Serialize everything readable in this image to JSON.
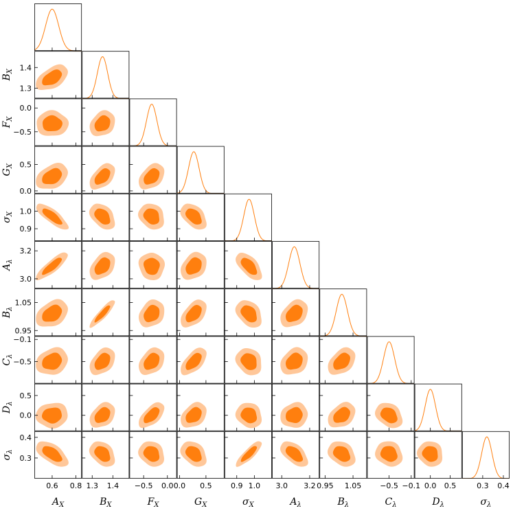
{
  "chart_data": {
    "type": "corner",
    "parameters": [
      {
        "id": "AX",
        "label": "A",
        "sub": "X",
        "range": [
          0.45,
          0.85
        ],
        "ticks": [
          0.6,
          0.8
        ],
        "tick_labels": [
          "0.6",
          "0.8"
        ],
        "mean": 0.6,
        "sd": 0.055
      },
      {
        "id": "BX",
        "label": "B",
        "sub": "X",
        "range": [
          1.25,
          1.48
        ],
        "ticks": [
          1.3,
          1.4
        ],
        "tick_labels": [
          "1.3",
          "1.4"
        ],
        "mean": 1.35,
        "sd": 0.025
      },
      {
        "id": "FX",
        "label": "F",
        "sub": "X",
        "range": [
          -0.8,
          0.2
        ],
        "ticks": [
          -0.5,
          0.0
        ],
        "tick_labels": [
          "-0.5",
          "0.0"
        ],
        "mean": -0.33,
        "sd": 0.11
      },
      {
        "id": "GX",
        "label": "G",
        "sub": "X",
        "range": [
          -0.05,
          0.85
        ],
        "ticks": [
          0.0,
          0.5
        ],
        "tick_labels": [
          "0.0",
          "0.5"
        ],
        "mean": 0.27,
        "sd": 0.1
      },
      {
        "id": "sigmaX",
        "label": "σ",
        "sub": "X",
        "range": [
          0.83,
          1.1
        ],
        "ticks": [
          0.9,
          1.0
        ],
        "tick_labels": [
          "0.9",
          "1.0"
        ],
        "mean": 0.97,
        "sd": 0.03
      },
      {
        "id": "Alambda",
        "label": "A",
        "sub": "λ",
        "range": [
          2.93,
          3.27
        ],
        "ticks": [
          3.0,
          3.2
        ],
        "tick_labels": [
          "3.0",
          "3.2"
        ],
        "mean": 3.09,
        "sd": 0.04
      },
      {
        "id": "Blambda",
        "label": "B",
        "sub": "λ",
        "range": [
          0.93,
          1.1
        ],
        "ticks": [
          0.95,
          1.05
        ],
        "tick_labels": [
          "0.95",
          "1.05"
        ],
        "mean": 1.01,
        "sd": 0.02
      },
      {
        "id": "Clambda",
        "label": "C",
        "sub": "λ",
        "range": [
          -0.9,
          -0.04
        ],
        "ticks": [
          -0.5,
          -0.1
        ],
        "tick_labels": [
          "-0.5",
          "-0.1"
        ],
        "mean": -0.5,
        "sd": 0.1
      },
      {
        "id": "Dlambda",
        "label": "D",
        "sub": "λ",
        "range": [
          -0.4,
          0.8
        ],
        "ticks": [
          0.0,
          0.5
        ],
        "tick_labels": [
          "0.0",
          "0.5"
        ],
        "mean": 0.0,
        "sd": 0.13
      },
      {
        "id": "sigmalambda",
        "label": "σ",
        "sub": "λ",
        "range": [
          0.2,
          0.43
        ],
        "ticks": [
          0.3,
          0.4
        ],
        "tick_labels": [
          "0.3",
          "0.4"
        ],
        "mean": 0.32,
        "sd": 0.025
      }
    ],
    "correlations": [
      {
        "pair": [
          "BX",
          "AX"
        ],
        "r": 0.5
      },
      {
        "pair": [
          "FX",
          "AX"
        ],
        "r": 0.0
      },
      {
        "pair": [
          "FX",
          "BX"
        ],
        "r": 0.25
      },
      {
        "pair": [
          "GX",
          "AX"
        ],
        "r": 0.35
      },
      {
        "pair": [
          "GX",
          "BX"
        ],
        "r": 0.5
      },
      {
        "pair": [
          "GX",
          "FX"
        ],
        "r": 0.4
      },
      {
        "pair": [
          "sigmaX",
          "AX"
        ],
        "r": -0.8
      },
      {
        "pair": [
          "sigmaX",
          "BX"
        ],
        "r": -0.4
      },
      {
        "pair": [
          "sigmaX",
          "FX"
        ],
        "r": -0.2
      },
      {
        "pair": [
          "sigmaX",
          "GX"
        ],
        "r": -0.45
      },
      {
        "pair": [
          "Alambda",
          "AX"
        ],
        "r": 0.85
      },
      {
        "pair": [
          "Alambda",
          "BX"
        ],
        "r": 0.4
      },
      {
        "pair": [
          "Alambda",
          "FX"
        ],
        "r": -0.05
      },
      {
        "pair": [
          "Alambda",
          "GX"
        ],
        "r": 0.3
      },
      {
        "pair": [
          "Alambda",
          "sigmaX"
        ],
        "r": -0.6
      },
      {
        "pair": [
          "Blambda",
          "AX"
        ],
        "r": 0.35
      },
      {
        "pair": [
          "Blambda",
          "BX"
        ],
        "r": 0.9
      },
      {
        "pair": [
          "Blambda",
          "FX"
        ],
        "r": 0.25
      },
      {
        "pair": [
          "Blambda",
          "GX"
        ],
        "r": 0.5
      },
      {
        "pair": [
          "Blambda",
          "sigmaX"
        ],
        "r": -0.35
      },
      {
        "pair": [
          "Blambda",
          "Alambda"
        ],
        "r": 0.35
      },
      {
        "pair": [
          "Clambda",
          "AX"
        ],
        "r": 0.2
      },
      {
        "pair": [
          "Clambda",
          "BX"
        ],
        "r": 0.4
      },
      {
        "pair": [
          "Clambda",
          "FX"
        ],
        "r": 0.35
      },
      {
        "pair": [
          "Clambda",
          "GX"
        ],
        "r": 0.6
      },
      {
        "pair": [
          "Clambda",
          "sigmaX"
        ],
        "r": -0.2
      },
      {
        "pair": [
          "Clambda",
          "Alambda"
        ],
        "r": 0.25
      },
      {
        "pair": [
          "Clambda",
          "Blambda"
        ],
        "r": 0.4
      },
      {
        "pair": [
          "Dlambda",
          "AX"
        ],
        "r": 0.05
      },
      {
        "pair": [
          "Dlambda",
          "BX"
        ],
        "r": 0.35
      },
      {
        "pair": [
          "Dlambda",
          "FX"
        ],
        "r": 0.6
      },
      {
        "pair": [
          "Dlambda",
          "GX"
        ],
        "r": 0.35
      },
      {
        "pair": [
          "Dlambda",
          "sigmaX"
        ],
        "r": -0.15
      },
      {
        "pair": [
          "Dlambda",
          "Alambda"
        ],
        "r": 0.1
      },
      {
        "pair": [
          "Dlambda",
          "Blambda"
        ],
        "r": 0.35
      },
      {
        "pair": [
          "Dlambda",
          "Clambda"
        ],
        "r": -0.3
      },
      {
        "pair": [
          "sigmalambda",
          "AX"
        ],
        "r": -0.6
      },
      {
        "pair": [
          "sigmalambda",
          "BX"
        ],
        "r": -0.35
      },
      {
        "pair": [
          "sigmalambda",
          "FX"
        ],
        "r": -0.2
      },
      {
        "pair": [
          "sigmalambda",
          "GX"
        ],
        "r": -0.35
      },
      {
        "pair": [
          "sigmalambda",
          "sigmaX"
        ],
        "r": 0.85
      },
      {
        "pair": [
          "sigmalambda",
          "Alambda"
        ],
        "r": -0.55
      },
      {
        "pair": [
          "sigmalambda",
          "Blambda"
        ],
        "r": -0.3
      },
      {
        "pair": [
          "sigmalambda",
          "Clambda"
        ],
        "r": -0.15
      },
      {
        "pair": [
          "sigmalambda",
          "Dlambda"
        ],
        "r": -0.1
      }
    ],
    "contour_levels": [
      "68%",
      "95%"
    ],
    "title": "",
    "xlabel": "",
    "ylabel": "",
    "grid": false,
    "legend": "none"
  },
  "colors": {
    "inner_contour": "#ff7f0e",
    "outer_contour": "#ffc799",
    "marginal_line": "#ff7f0e",
    "axes": "#000000",
    "background": "#ffffff"
  }
}
